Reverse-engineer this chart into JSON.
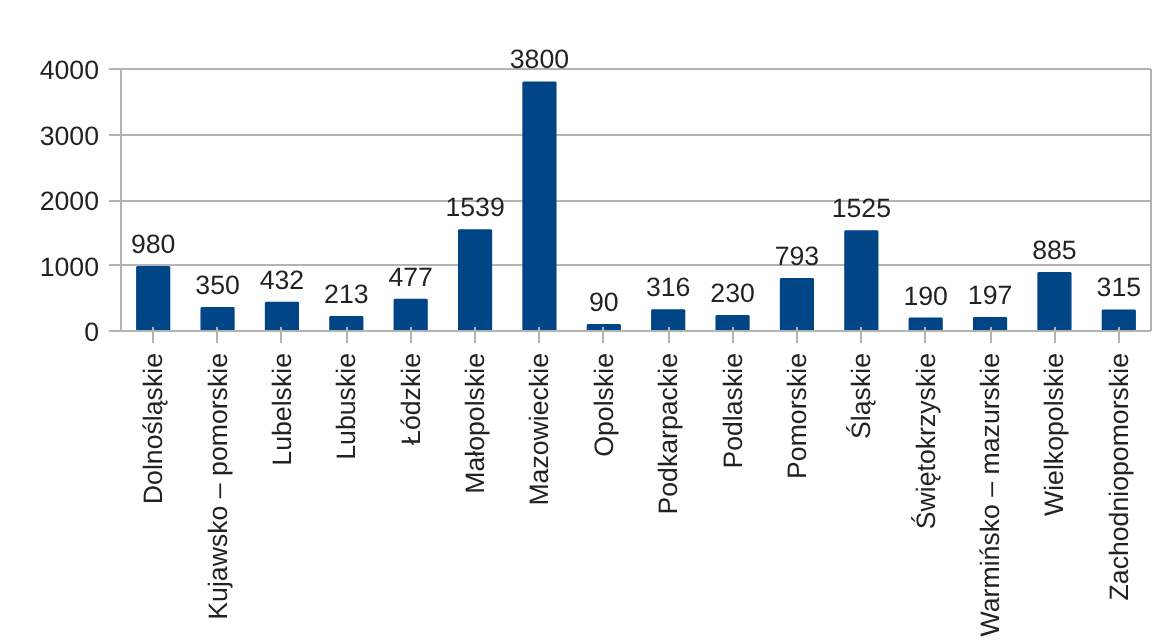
{
  "chart_data": {
    "type": "bar",
    "categories": [
      "Dolnośląskie",
      "Kujawsko – pomorskie",
      "Lubelskie",
      "Lubuskie",
      "Łódzkie",
      "Małopolskie",
      "Mazowieckie",
      "Opolskie",
      "Podkarpackie",
      "Podlaskie",
      "Pomorskie",
      "Śląskie",
      "Świętokrzyskie",
      "Warmińsko – mazurskie",
      "Wielkopolskie",
      "Zachodniopomorskie"
    ],
    "values": [
      980,
      350,
      432,
      213,
      477,
      1539,
      3800,
      90,
      316,
      230,
      793,
      1525,
      190,
      197,
      885,
      315
    ],
    "color": "#004586",
    "ylim": [
      0,
      4000
    ],
    "yticks": [
      0,
      1000,
      2000,
      3000,
      4000
    ],
    "grid": "y",
    "data_labels": true
  }
}
